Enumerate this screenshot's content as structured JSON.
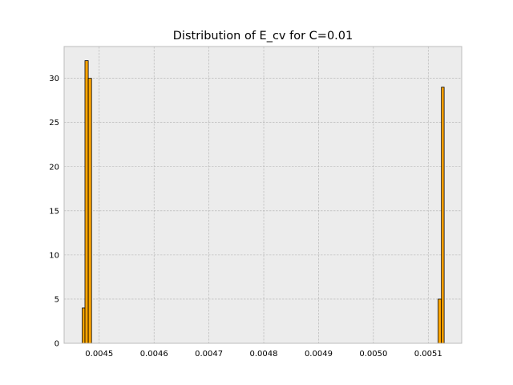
{
  "chart_data": {
    "type": "bar",
    "title": "Distribution of E_cv for C=0.01",
    "xlabel": "",
    "ylabel": "",
    "xlim": [
      0.004436,
      0.005161
    ],
    "ylim": [
      0,
      33.6
    ],
    "grid": true,
    "x_ticks": [
      {
        "value": 0.0045,
        "label": "0.0045"
      },
      {
        "value": 0.0046,
        "label": "0.0046"
      },
      {
        "value": 0.0047,
        "label": "0.0047"
      },
      {
        "value": 0.0048,
        "label": "0.0048"
      },
      {
        "value": 0.0049,
        "label": "0.0049"
      },
      {
        "value": 0.005,
        "label": "0.0050"
      },
      {
        "value": 0.0051,
        "label": "0.0051"
      }
    ],
    "y_ticks": [
      {
        "value": 0,
        "label": "0"
      },
      {
        "value": 5,
        "label": "5"
      },
      {
        "value": 10,
        "label": "10"
      },
      {
        "value": 15,
        "label": "15"
      },
      {
        "value": 20,
        "label": "20"
      },
      {
        "value": 25,
        "label": "25"
      },
      {
        "value": 30,
        "label": "30"
      }
    ],
    "bins": [
      {
        "x0": 0.004469,
        "x1": 0.004474,
        "count": 4
      },
      {
        "x0": 0.004474,
        "x1": 0.00448,
        "count": 32
      },
      {
        "x0": 0.00448,
        "x1": 0.004486,
        "count": 30
      },
      {
        "x0": 0.005118,
        "x1": 0.005124,
        "count": 5
      },
      {
        "x0": 0.005124,
        "x1": 0.005129,
        "count": 29
      }
    ],
    "colors": {
      "bar_fill": "#ffa500",
      "bar_edge": "#000000",
      "plot_bg": "#ececec",
      "grid": "#b0b0b0",
      "frame": "#bcbcbc"
    }
  }
}
